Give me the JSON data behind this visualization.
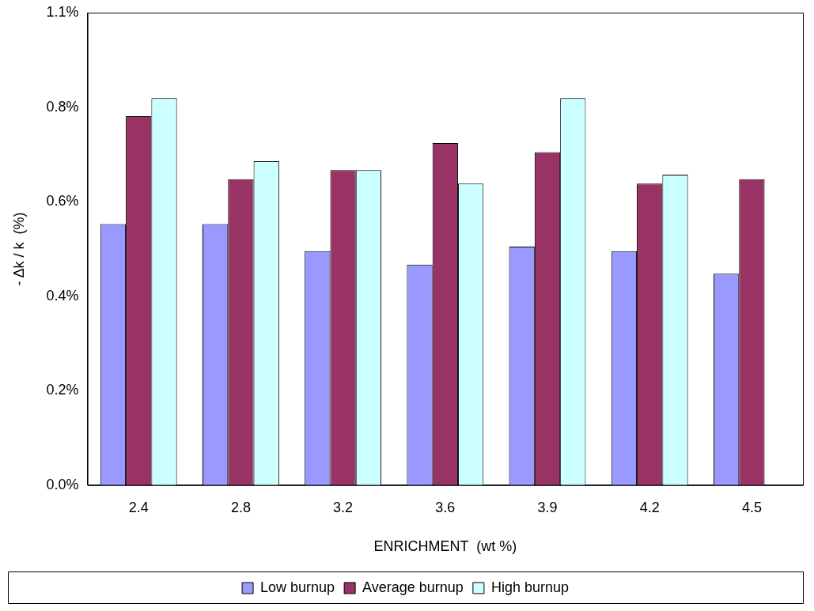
{
  "chart_data": {
    "type": "bar",
    "xlabel": "ENRICHMENT  (wt %)",
    "ylabel": "- Δk / k  (%)",
    "categories": [
      "2.4",
      "2.8",
      "3.2",
      "3.6",
      "3.9",
      "4.2",
      "4.5"
    ],
    "series": [
      {
        "name": "Low burnup",
        "color": "#9999ff",
        "values": [
          0.58,
          0.58,
          0.52,
          0.49,
          0.53,
          0.52,
          0.47
        ]
      },
      {
        "name": "Average burnup",
        "color": "#993366",
        "values": [
          0.82,
          0.68,
          0.7,
          0.76,
          0.74,
          0.67,
          0.68
        ]
      },
      {
        "name": "High burnup",
        "color": "#ccffff",
        "values": [
          0.86,
          0.72,
          0.7,
          0.67,
          0.86,
          0.69,
          null
        ]
      }
    ],
    "ylim": [
      0,
      1.05
    ],
    "yticks": [
      {
        "value": 0,
        "label": "0.0%"
      },
      {
        "value": 0.21,
        "label": "0.2%"
      },
      {
        "value": 0.42,
        "label": "0.4%"
      },
      {
        "value": 0.63,
        "label": "0.6%"
      },
      {
        "value": 0.84,
        "label": "0.8%"
      },
      {
        "value": 1.05,
        "label": "1.1%"
      }
    ],
    "grid": false,
    "legend": "bottom"
  }
}
